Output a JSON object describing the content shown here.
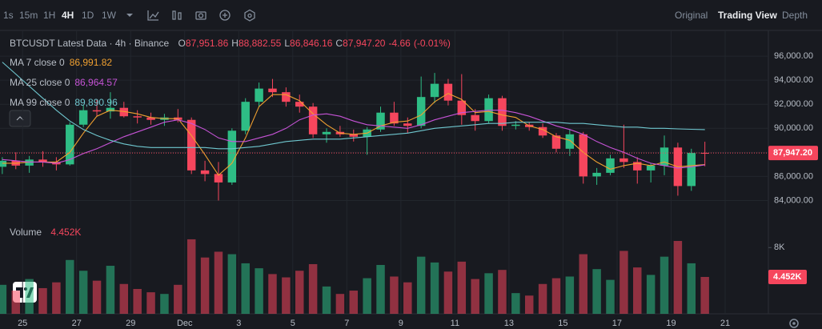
{
  "toolbar": {
    "intervals": [
      "1s",
      "15m",
      "1H",
      "4H",
      "1D",
      "1W"
    ],
    "active": "4H",
    "views": [
      "Original",
      "Trading View",
      "Depth"
    ],
    "active_view": "Trading View"
  },
  "chart_data": {
    "type": "candlestick",
    "title": "BTCUSDT Latest Data · 4h · Binance",
    "ohlc_legend": [
      {
        "key": "O",
        "value": 87951.86,
        "label": "87,951.86"
      },
      {
        "key": "H",
        "value": 88882.55,
        "label": "88,882.55"
      },
      {
        "key": "L",
        "value": 86846.16,
        "label": "86,846.16"
      },
      {
        "key": "C",
        "value": 87947.2,
        "label": "87,947.20"
      }
    ],
    "change": {
      "value": -4.66,
      "label": "-4.66"
    },
    "change_pct": {
      "value": -0.01,
      "label": "(-0.01%)"
    },
    "up_color": "#2ebd85",
    "down_color": "#f6465d",
    "candles": [
      [
        86800,
        87600,
        86200,
        87300
      ],
      [
        87300,
        88000,
        86600,
        86900
      ],
      [
        86900,
        87700,
        86300,
        87400
      ],
      [
        87400,
        88100,
        86800,
        87200
      ],
      [
        87200,
        87600,
        86500,
        87000
      ],
      [
        87000,
        90500,
        86900,
        90300
      ],
      [
        90300,
        91900,
        90100,
        91500
      ],
      [
        91500,
        92400,
        91000,
        91400
      ],
      [
        91400,
        93000,
        90800,
        91700
      ],
      [
        91700,
        92200,
        90900,
        91000
      ],
      [
        91000,
        91500,
        90400,
        90900
      ],
      [
        90900,
        91300,
        90300,
        90700
      ],
      [
        90700,
        91200,
        90200,
        90900
      ],
      [
        90900,
        91600,
        90500,
        90700
      ],
      [
        90700,
        90900,
        86200,
        86500
      ],
      [
        86500,
        87300,
        85600,
        86200
      ],
      [
        86200,
        87200,
        84000,
        85500
      ],
      [
        85500,
        90000,
        85300,
        89800
      ],
      [
        89800,
        92500,
        89500,
        92200
      ],
      [
        92200,
        93800,
        91800,
        93300
      ],
      [
        93300,
        94100,
        92600,
        93000
      ],
      [
        93000,
        93400,
        91800,
        92200
      ],
      [
        92200,
        92800,
        91300,
        91800
      ],
      [
        91800,
        92100,
        89200,
        89500
      ],
      [
        89500,
        90000,
        88800,
        89700
      ],
      [
        89700,
        90200,
        89300,
        89500
      ],
      [
        89500,
        89900,
        88900,
        89300
      ],
      [
        89300,
        90100,
        87800,
        89900
      ],
      [
        89900,
        91800,
        89700,
        91300
      ],
      [
        91300,
        92200,
        90200,
        90400
      ],
      [
        90400,
        90900,
        89600,
        90200
      ],
      [
        90200,
        94300,
        90000,
        92600
      ],
      [
        92600,
        94600,
        92100,
        93700
      ],
      [
        93700,
        94100,
        91900,
        92300
      ],
      [
        92300,
        94500,
        90300,
        91100
      ],
      [
        91100,
        91600,
        89800,
        90600
      ],
      [
        90600,
        92800,
        90400,
        92500
      ],
      [
        92500,
        92700,
        89800,
        90200
      ],
      [
        90200,
        90600,
        89900,
        90300
      ],
      [
        90300,
        90500,
        89800,
        90100
      ],
      [
        90100,
        90400,
        89200,
        89400
      ],
      [
        89400,
        89600,
        88000,
        88300
      ],
      [
        88300,
        89900,
        87700,
        89500
      ],
      [
        89500,
        89700,
        85400,
        86000
      ],
      [
        86000,
        86700,
        85300,
        86300
      ],
      [
        86300,
        87800,
        86100,
        87500
      ],
      [
        87500,
        90300,
        86700,
        87200
      ],
      [
        87200,
        87600,
        85400,
        86500
      ],
      [
        86500,
        87100,
        85500,
        86900
      ],
      [
        86900,
        89400,
        86100,
        88400
      ],
      [
        88400,
        88800,
        84400,
        85200
      ],
      [
        85200,
        88300,
        84800,
        87951.86
      ],
      [
        87951.86,
        88882.55,
        86846.16,
        87947.2
      ]
    ],
    "moving_averages": [
      {
        "name": "MA 7 close 0",
        "color": "#f0a030",
        "value": 86991.82,
        "value_label": "86,991.82",
        "values": [
          87100,
          87100,
          87200,
          87200,
          87200,
          88000,
          89600,
          91000,
          91500,
          91400,
          91200,
          90900,
          90800,
          90800,
          89400,
          87800,
          86100,
          87100,
          89200,
          91800,
          92800,
          92800,
          92300,
          91200,
          90300,
          89600,
          89500,
          89600,
          90200,
          90500,
          90600,
          91100,
          92200,
          92900,
          92400,
          91300,
          91400,
          91100,
          90900,
          90200,
          89900,
          89300,
          89000,
          88000,
          87200,
          86600,
          86900,
          87100,
          86900,
          87200,
          86800,
          86900,
          86991.82
        ]
      },
      {
        "name": "MA 25 close 0",
        "color": "#c653d6",
        "value": 86964.57,
        "value_label": "86,964.57",
        "values": [
          87400,
          87300,
          87200,
          87200,
          87100,
          87400,
          87900,
          88300,
          88800,
          89300,
          89700,
          90100,
          90500,
          90700,
          90400,
          89900,
          89200,
          88900,
          88900,
          89200,
          89500,
          90000,
          90700,
          91100,
          91200,
          91000,
          90600,
          90300,
          90200,
          90100,
          90000,
          90300,
          90700,
          91000,
          91300,
          91400,
          91500,
          91500,
          91300,
          91000,
          90600,
          90200,
          89900,
          89500,
          88900,
          88400,
          88000,
          87500,
          87100,
          86900,
          86700,
          86800,
          86964.57
        ]
      },
      {
        "name": "MA 99 close 0",
        "color": "#6fc7cf",
        "value": 89890.96,
        "value_label": "89,890.96",
        "values": [
          95500,
          94500,
          93500,
          92500,
          91500,
          90600,
          89900,
          89400,
          89000,
          88700,
          88500,
          88400,
          88400,
          88400,
          88400,
          88400,
          88300,
          88300,
          88400,
          88500,
          88700,
          88900,
          89000,
          89100,
          89100,
          89100,
          89200,
          89300,
          89400,
          89500,
          89600,
          89800,
          90000,
          90100,
          90200,
          90300,
          90400,
          90400,
          90500,
          90500,
          90500,
          90500,
          90400,
          90400,
          90300,
          90200,
          90100,
          90100,
          90000,
          90000,
          89950,
          89920,
          89890.96
        ]
      }
    ],
    "last_price": {
      "value": 87947.2,
      "label": "87,947.20"
    },
    "ylim": [
      82700,
      98000
    ],
    "yticks": [
      {
        "value": 84000,
        "label": "84,000.00"
      },
      {
        "value": 86000,
        "label": "86,000.00"
      },
      {
        "value": 88000,
        "label": "88,000.00"
      },
      {
        "value": 90000,
        "label": "90,000.00"
      },
      {
        "value": 92000,
        "label": "92,000.00"
      },
      {
        "value": 94000,
        "label": "94,000.00"
      },
      {
        "value": 96000,
        "label": "96,000.00"
      }
    ],
    "xlim": [
      0.33,
      57.2
    ],
    "xticks": [
      {
        "value": 2,
        "label": "25"
      },
      {
        "value": 6,
        "label": "27"
      },
      {
        "value": 10,
        "label": "29"
      },
      {
        "value": 14,
        "label": "Dec"
      },
      {
        "value": 18,
        "label": "3"
      },
      {
        "value": 22,
        "label": "5"
      },
      {
        "value": 26,
        "label": "7"
      },
      {
        "value": 30,
        "label": "9"
      },
      {
        "value": 34,
        "label": "11"
      },
      {
        "value": 38,
        "label": "13"
      },
      {
        "value": 42,
        "label": "15"
      },
      {
        "value": 46,
        "label": "17"
      },
      {
        "value": 50,
        "label": "19"
      },
      {
        "value": 54,
        "label": "21"
      }
    ],
    "volume": {
      "name": "Volume",
      "value": 4452,
      "value_label": "4.452K",
      "values": [
        3500,
        2800,
        4200,
        3100,
        3800,
        6500,
        5200,
        4000,
        5800,
        3600,
        3000,
        2600,
        2400,
        3500,
        9000,
        6800,
        7500,
        7200,
        6100,
        5500,
        4800,
        4400,
        5200,
        6000,
        3300,
        2400,
        2800,
        4300,
        5900,
        4500,
        3800,
        6900,
        6200,
        5100,
        6300,
        4200,
        4900,
        5300,
        2500,
        2200,
        3600,
        4300,
        4500,
        7200,
        5400,
        4100,
        7600,
        5600,
        4700,
        6900,
        8800,
        6100,
        4452
      ],
      "ylim": [
        0,
        10000
      ],
      "yticks": [
        {
          "value": 8000,
          "label": "8K"
        }
      ]
    },
    "grid": true
  }
}
